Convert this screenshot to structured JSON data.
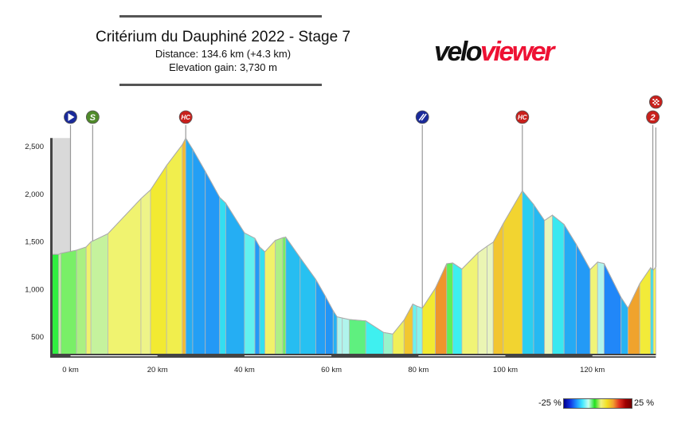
{
  "header": {
    "title": "Critérium du Dauphiné 2022 - Stage 7",
    "distance": "Distance: 134.6 km (+4.3 km)",
    "elevation_gain": "Elevation gain: 3,730 m",
    "logo_text": "veloviewer",
    "logo_part1": "velo",
    "logo_part2": "viewer"
  },
  "legend": {
    "min_label": "-25 %",
    "max_label": "25 %",
    "colormap": "gradient blue-cyan-green-yellow-red"
  },
  "chart_data": {
    "type": "area",
    "title": "",
    "xlabel": "",
    "ylabel": "",
    "x_unit": "km",
    "xlim": [
      -4.3,
      134.6
    ],
    "ylim": [
      320,
      2590
    ],
    "x_ticks": [
      0,
      20,
      40,
      60,
      80,
      100,
      120
    ],
    "x_tick_labels": [
      "0 km",
      "20 km",
      "40 km",
      "60 km",
      "80 km",
      "100 km",
      "120 km"
    ],
    "y_ticks": [
      500,
      1000,
      1500,
      2000,
      2500
    ],
    "y_tick_labels": [
      "500",
      "1,000",
      "1,500",
      "2,000",
      "2,500"
    ],
    "neutral_zone_km": [
      -4.3,
      0
    ],
    "fill_color_by": "gradient %",
    "points": [
      [
        -4.3,
        1368
      ],
      [
        -2.7,
        1368
      ],
      [
        -2.2,
        1379
      ],
      [
        1.4,
        1412
      ],
      [
        3.6,
        1446
      ],
      [
        4.7,
        1500
      ],
      [
        8.6,
        1585
      ],
      [
        16.2,
        1953
      ],
      [
        18.4,
        2045
      ],
      [
        22.1,
        2302
      ],
      [
        25.7,
        2519
      ],
      [
        26.5,
        2590
      ],
      [
        28.1,
        2472
      ],
      [
        31.0,
        2240
      ],
      [
        34.3,
        1967
      ],
      [
        35.7,
        1906
      ],
      [
        40.0,
        1594
      ],
      [
        42.4,
        1537
      ],
      [
        43.5,
        1446
      ],
      [
        44.7,
        1395
      ],
      [
        47.1,
        1515
      ],
      [
        48.8,
        1543
      ],
      [
        49.5,
        1549
      ],
      [
        52.8,
        1334
      ],
      [
        56.4,
        1105
      ],
      [
        58.6,
        929
      ],
      [
        60.4,
        776
      ],
      [
        61.3,
        712
      ],
      [
        62.5,
        700
      ],
      [
        64.1,
        684
      ],
      [
        67.9,
        670
      ],
      [
        72.0,
        548
      ],
      [
        74.1,
        531
      ],
      [
        76.7,
        678
      ],
      [
        78.7,
        846
      ],
      [
        79.6,
        826
      ],
      [
        80.9,
        804
      ],
      [
        83.9,
        1013
      ],
      [
        86.5,
        1270
      ],
      [
        87.9,
        1278
      ],
      [
        90.0,
        1214
      ],
      [
        93.7,
        1385
      ],
      [
        95.8,
        1454
      ],
      [
        97.2,
        1496
      ],
      [
        99.5,
        1691
      ],
      [
        103.9,
        2037
      ],
      [
        106.5,
        1892
      ],
      [
        109.0,
        1724
      ],
      [
        110.8,
        1780
      ],
      [
        113.5,
        1682
      ],
      [
        116.3,
        1473
      ],
      [
        119.5,
        1209
      ],
      [
        121.2,
        1287
      ],
      [
        122.7,
        1272
      ],
      [
        126.6,
        916
      ],
      [
        128.2,
        804
      ],
      [
        130.9,
        1061
      ],
      [
        133.4,
        1228
      ],
      [
        134.0,
        1203
      ],
      [
        134.6,
        1236
      ]
    ],
    "markers": [
      {
        "km": 0,
        "icon": "start-icon",
        "label": "",
        "color": "#1a2a9a"
      },
      {
        "km": 5.1,
        "icon": "sprint-icon",
        "label": "S",
        "color": "#4f8a2a"
      },
      {
        "km": 26.5,
        "icon": "climb-icon",
        "label": "HC",
        "color": "#c8201c"
      },
      {
        "km": 80.9,
        "icon": "feed-zone-icon",
        "label": "",
        "color": "#1a2a9a"
      },
      {
        "km": 103.9,
        "icon": "climb-icon",
        "label": "HC",
        "color": "#c8201c"
      },
      {
        "km": 133.9,
        "icon": "climb-icon",
        "label": "2",
        "color": "#c8201c"
      },
      {
        "km": 134.6,
        "icon": "finish-flag-icon",
        "label": "",
        "color": "#c8201c"
      }
    ]
  }
}
